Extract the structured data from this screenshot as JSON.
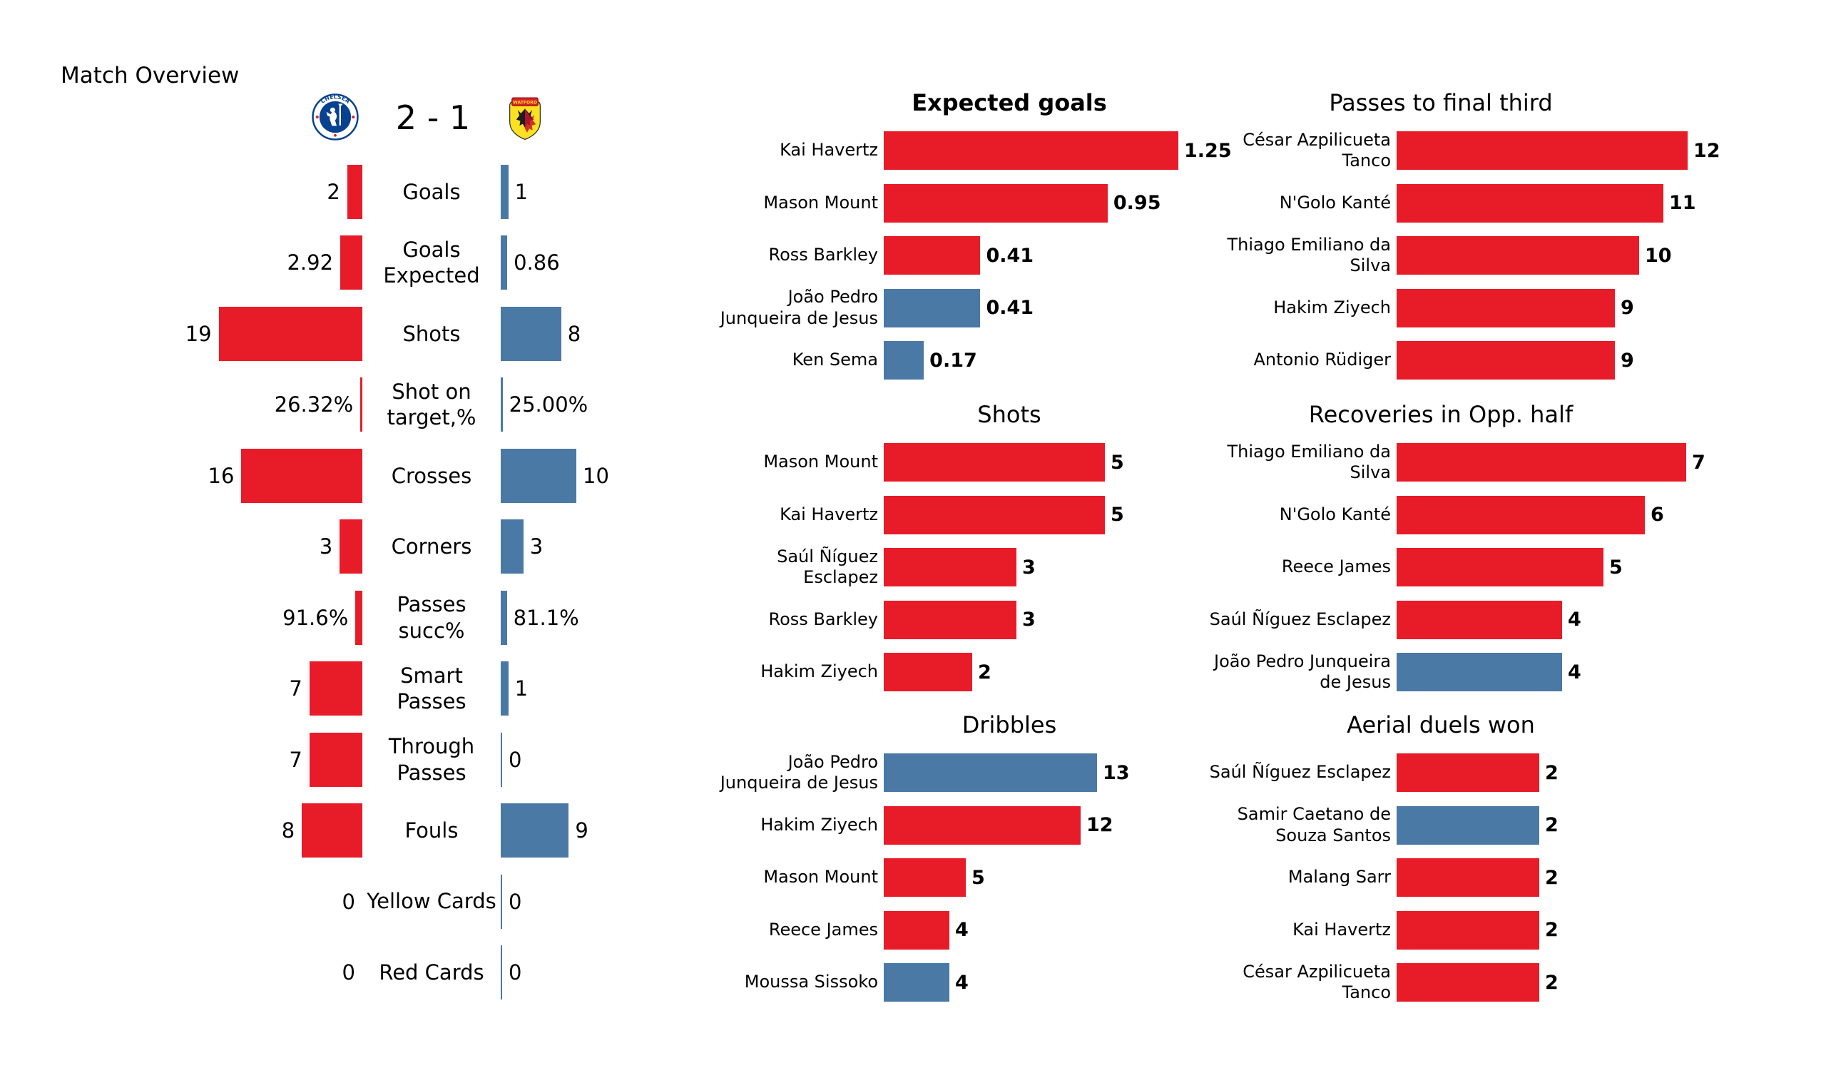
{
  "header": {
    "title": "Match Overview",
    "score": "2 - 1",
    "home_badge": {
      "icon": "chelsea-badge",
      "text": "CHELSEA"
    },
    "away_badge": {
      "icon": "watford-badge",
      "text": "WATFORD"
    }
  },
  "colors": {
    "home": "#E81C28",
    "away": "#4B79A6",
    "chelsea_navy": "#07418F",
    "watford_yellow": "#FBE122",
    "watford_red": "#DC1F26",
    "text": "#000000",
    "background": "#FFFFFF"
  },
  "chart_data": {
    "overview_comparison": {
      "type": "bar",
      "layout": "diverging-paired",
      "home_team": "Chelsea",
      "away_team": "Watford",
      "rows": [
        {
          "label": "Goals",
          "home": "2",
          "away": "1",
          "home_value": 2,
          "away_value": 1,
          "percent": false
        },
        {
          "label": "Goals Expected",
          "home": "2.92",
          "away": "0.86",
          "home_value": 2.92,
          "away_value": 0.86,
          "percent": false
        },
        {
          "label": "Shots",
          "home": "19",
          "away": "8",
          "home_value": 19,
          "away_value": 8,
          "percent": false
        },
        {
          "label": "Shot on\ntarget,%",
          "home": "26.32%",
          "away": "25.00%",
          "home_value": 26.32,
          "away_value": 25,
          "percent": true
        },
        {
          "label": "Crosses",
          "home": "16",
          "away": "10",
          "home_value": 16,
          "away_value": 10,
          "percent": false
        },
        {
          "label": "Corners",
          "home": "3",
          "away": "3",
          "home_value": 3,
          "away_value": 3,
          "percent": false
        },
        {
          "label": "Passes succ%",
          "home": "91.6%",
          "away": "81.1%",
          "home_value": 91.6,
          "away_value": 81.1,
          "percent": true
        },
        {
          "label": "Smart Passes",
          "home": "7",
          "away": "1",
          "home_value": 7,
          "away_value": 1,
          "percent": false
        },
        {
          "label": "Through Passes",
          "home": "7",
          "away": "0",
          "home_value": 7,
          "away_value": 0,
          "percent": false
        },
        {
          "label": "Fouls",
          "home": "8",
          "away": "9",
          "home_value": 8,
          "away_value": 9,
          "percent": false
        },
        {
          "label": "Yellow Cards",
          "home": "0",
          "away": "0",
          "home_value": 0,
          "away_value": 0,
          "percent": false
        },
        {
          "label": "Red Cards",
          "home": "0",
          "away": "0",
          "home_value": 0,
          "away_value": 0,
          "percent": false
        }
      ]
    },
    "player_charts": [
      {
        "type": "bar",
        "title": "Expected goals",
        "title_bold": true,
        "column": "middle",
        "entries": [
          {
            "player": "Kai Havertz",
            "value": 1.25,
            "label": "1.25",
            "team": "home"
          },
          {
            "player": "Mason Mount",
            "value": 0.95,
            "label": "0.95",
            "team": "home"
          },
          {
            "player": "Ross Barkley",
            "value": 0.41,
            "label": "0.41",
            "team": "home"
          },
          {
            "player": "João Pedro\nJunqueira de Jesus",
            "value": 0.41,
            "label": "0.41",
            "team": "away"
          },
          {
            "player": "Ken Sema",
            "value": 0.17,
            "label": "0.17",
            "team": "away"
          }
        ]
      },
      {
        "type": "bar",
        "title": "Shots",
        "title_bold": false,
        "column": "middle",
        "entries": [
          {
            "player": "Mason Mount",
            "value": 5,
            "label": "5",
            "team": "home"
          },
          {
            "player": "Kai Havertz",
            "value": 5,
            "label": "5",
            "team": "home"
          },
          {
            "player": "Saúl Ñíguez\nEsclapez",
            "value": 3,
            "label": "3",
            "team": "home"
          },
          {
            "player": "Ross Barkley",
            "value": 3,
            "label": "3",
            "team": "home"
          },
          {
            "player": "Hakim Ziyech",
            "value": 2,
            "label": "2",
            "team": "home"
          }
        ]
      },
      {
        "type": "bar",
        "title": "Dribbles",
        "title_bold": false,
        "column": "middle",
        "entries": [
          {
            "player": "João Pedro\nJunqueira de Jesus",
            "value": 13,
            "label": "13",
            "team": "away"
          },
          {
            "player": "Hakim Ziyech",
            "value": 12,
            "label": "12",
            "team": "home"
          },
          {
            "player": "Mason Mount",
            "value": 5,
            "label": "5",
            "team": "home"
          },
          {
            "player": "Reece James",
            "value": 4,
            "label": "4",
            "team": "home"
          },
          {
            "player": "Moussa Sissoko",
            "value": 4,
            "label": "4",
            "team": "away"
          }
        ]
      },
      {
        "type": "bar",
        "title": "Passes to final third",
        "title_bold": false,
        "column": "right",
        "entries": [
          {
            "player": "César Azpilicueta\nTanco",
            "value": 12,
            "label": "12",
            "team": "home"
          },
          {
            "player": "N'Golo Kanté",
            "value": 11,
            "label": "11",
            "team": "home"
          },
          {
            "player": "Thiago Emiliano da\nSilva",
            "value": 10,
            "label": "10",
            "team": "home"
          },
          {
            "player": "Hakim Ziyech",
            "value": 9,
            "label": "9",
            "team": "home"
          },
          {
            "player": "Antonio Rüdiger",
            "value": 9,
            "label": "9",
            "team": "home"
          }
        ]
      },
      {
        "type": "bar",
        "title": "Recoveries in Opp. half",
        "title_bold": false,
        "column": "right",
        "entries": [
          {
            "player": "Thiago Emiliano da\nSilva",
            "value": 7,
            "label": "7",
            "team": "home"
          },
          {
            "player": "N'Golo Kanté",
            "value": 6,
            "label": "6",
            "team": "home"
          },
          {
            "player": "Reece James",
            "value": 5,
            "label": "5",
            "team": "home"
          },
          {
            "player": "Saúl Ñíguez Esclapez",
            "value": 4,
            "label": "4",
            "team": "home"
          },
          {
            "player": "João Pedro Junqueira\nde Jesus",
            "value": 4,
            "label": "4",
            "team": "away"
          }
        ]
      },
      {
        "type": "bar",
        "title": "Aerial duels won",
        "title_bold": false,
        "column": "right",
        "entries": [
          {
            "player": "Saúl Ñíguez Esclapez",
            "value": 2,
            "label": "2",
            "team": "home"
          },
          {
            "player": "Samir Caetano de\nSouza Santos",
            "value": 2,
            "label": "2",
            "team": "away"
          },
          {
            "player": "Malang Sarr",
            "value": 2,
            "label": "2",
            "team": "home"
          },
          {
            "player": "Kai Havertz",
            "value": 2,
            "label": "2",
            "team": "home"
          },
          {
            "player": "César Azpilicueta\nTanco",
            "value": 2,
            "label": "2",
            "team": "home"
          }
        ]
      }
    ]
  }
}
